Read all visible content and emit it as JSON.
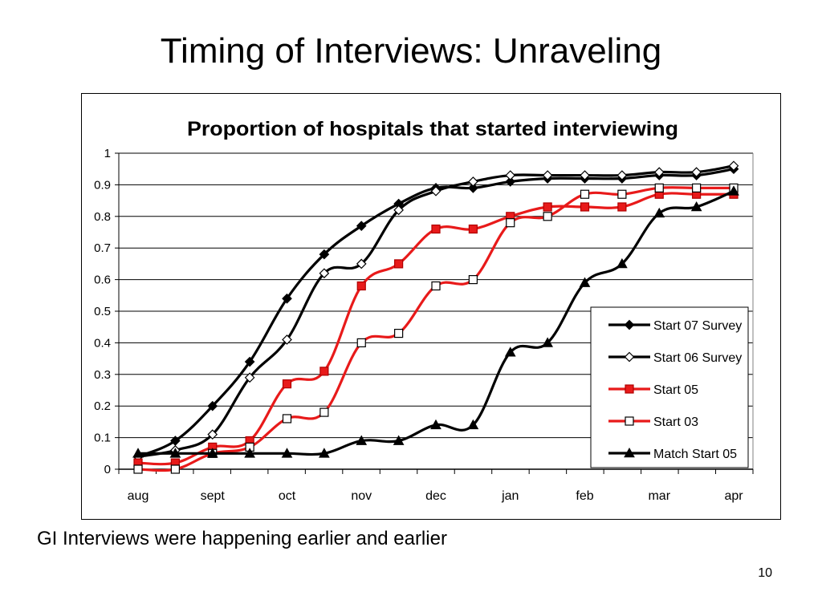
{
  "slide": {
    "title": "Timing of Interviews: Unraveling",
    "caption": "GI Interviews were happening earlier and earlier",
    "page_number": "10"
  },
  "chart_data": {
    "type": "line",
    "title": "Proportion of hospitals that started interviewing",
    "xlabel": "",
    "ylabel": "",
    "ylim": [
      0,
      1
    ],
    "yticks": [
      "0",
      "0.1",
      "0.2",
      "0.3",
      "0.4",
      "0.5",
      "0.6",
      "0.7",
      "0.8",
      "0.9",
      "1"
    ],
    "categories": [
      "aug",
      "sept",
      "oct",
      "nov",
      "dec",
      "jan",
      "feb",
      "mar",
      "apr"
    ],
    "grid": "horizontal",
    "legend_position": "bottom-right",
    "series": [
      {
        "name": "Start 07 Survey",
        "color": "#000000",
        "marker": "diamond",
        "filled": true,
        "x": [
          0,
          0.5,
          1,
          1.5,
          2,
          2.5,
          3,
          3.5,
          4,
          4.5,
          5,
          5.5,
          6,
          6.5,
          7,
          7.5,
          8
        ],
        "values": [
          0.04,
          0.09,
          0.2,
          0.34,
          0.54,
          0.68,
          0.77,
          0.84,
          0.89,
          0.89,
          0.91,
          0.92,
          0.92,
          0.92,
          0.93,
          0.93,
          0.95
        ]
      },
      {
        "name": "Start 06 Survey",
        "color": "#000000",
        "marker": "diamond",
        "filled": false,
        "x": [
          0,
          0.5,
          1,
          1.5,
          2,
          2.5,
          3,
          3.5,
          4,
          4.5,
          5,
          5.5,
          6,
          6.5,
          7,
          7.5,
          8
        ],
        "values": [
          0.04,
          0.06,
          0.11,
          0.29,
          0.41,
          0.62,
          0.65,
          0.82,
          0.88,
          0.91,
          0.93,
          0.93,
          0.93,
          0.93,
          0.94,
          0.94,
          0.96
        ]
      },
      {
        "name": "Start 05",
        "color": "#e81a1a",
        "marker": "square",
        "filled": true,
        "x": [
          0,
          0.5,
          1,
          1.5,
          2,
          2.5,
          3,
          3.5,
          4,
          4.5,
          5,
          5.5,
          6,
          6.5,
          7,
          7.5,
          8
        ],
        "values": [
          0.02,
          0.02,
          0.07,
          0.09,
          0.27,
          0.31,
          0.58,
          0.65,
          0.76,
          0.76,
          0.8,
          0.83,
          0.83,
          0.83,
          0.87,
          0.87,
          0.87
        ]
      },
      {
        "name": "Start 03",
        "color": "#e81a1a",
        "marker": "square",
        "filled": false,
        "x": [
          0,
          0.5,
          1,
          1.5,
          2,
          2.5,
          3,
          3.5,
          4,
          4.5,
          5,
          5.5,
          6,
          6.5,
          7,
          7.5,
          8
        ],
        "values": [
          0.0,
          0.0,
          0.05,
          0.07,
          0.16,
          0.18,
          0.4,
          0.43,
          0.58,
          0.6,
          0.78,
          0.8,
          0.87,
          0.87,
          0.89,
          0.89,
          0.89
        ]
      },
      {
        "name": "Match Start 05",
        "color": "#000000",
        "marker": "triangle",
        "filled": true,
        "x": [
          0,
          0.5,
          1,
          1.5,
          2,
          2.5,
          3,
          3.5,
          4,
          4.5,
          5,
          5.5,
          6,
          6.5,
          7,
          7.5,
          8
        ],
        "values": [
          0.05,
          0.05,
          0.05,
          0.05,
          0.05,
          0.05,
          0.09,
          0.09,
          0.14,
          0.14,
          0.37,
          0.4,
          0.59,
          0.65,
          0.81,
          0.83,
          0.88
        ]
      }
    ]
  }
}
